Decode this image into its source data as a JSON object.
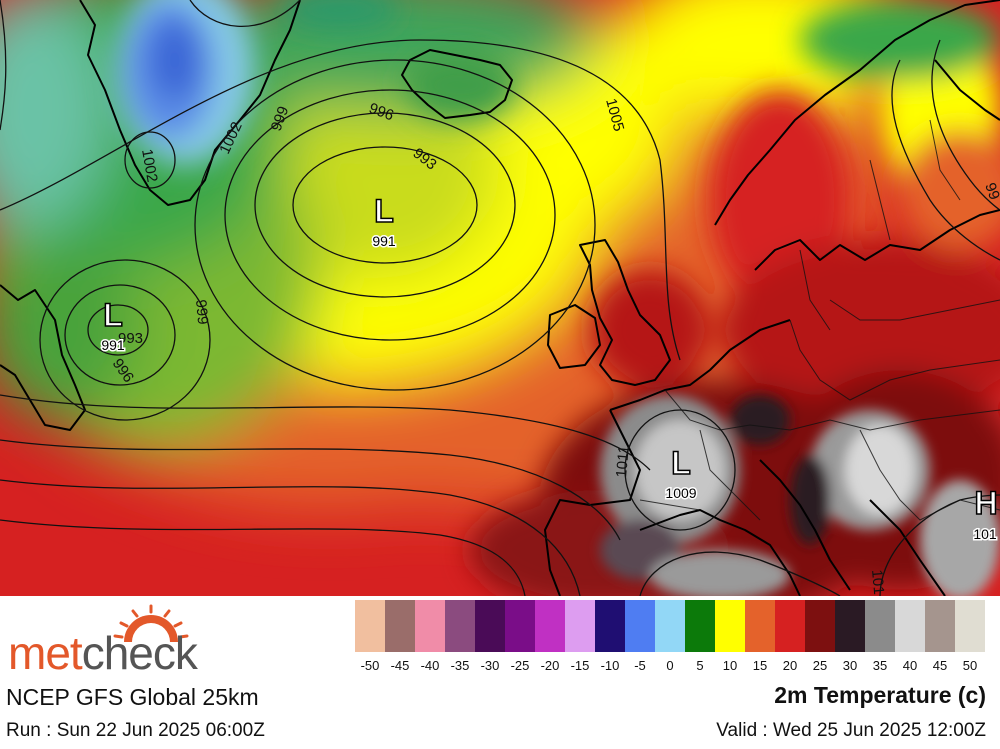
{
  "footer": {
    "logo": {
      "met": "met",
      "check": "check"
    },
    "model_name": "NCEP GFS Global 25km",
    "run": "Run : Sun 22 Jun 2025 06:00Z",
    "parameter": "2m Temperature (c)",
    "valid": "Valid : Wed 25 Jun 2025 12:00Z"
  },
  "legend": {
    "colors": [
      "#f1bf9f",
      "#9a6d6a",
      "#f08ca8",
      "#8b4b7f",
      "#4a0b57",
      "#7a0d88",
      "#c030c3",
      "#dd9df0",
      "#1f0e72",
      "#4f7df2",
      "#92d7f6",
      "#0c7a0a",
      "#ffff00",
      "#e4622b",
      "#d62121",
      "#7d1010",
      "#2a1a24",
      "#8b8b8b",
      "#d8d8d8",
      "#a5958e",
      "#e0ddd2"
    ],
    "ticks": [
      "-50",
      "-45",
      "-40",
      "-35",
      "-30",
      "-25",
      "-20",
      "-15",
      "-10",
      "-5",
      "0",
      "5",
      "10",
      "15",
      "20",
      "25",
      "30",
      "35",
      "40",
      "45",
      "50"
    ]
  },
  "map": {
    "systems": [
      {
        "type": "L",
        "value": "991"
      },
      {
        "type": "L",
        "value": "991"
      },
      {
        "type": "L",
        "value": "1009"
      },
      {
        "type": "H",
        "value": "101"
      }
    ],
    "isobar_labels": [
      "1002",
      "1002",
      "999",
      "996",
      "993",
      "1005",
      "999",
      "993",
      "996",
      "1011",
      "101",
      "99"
    ]
  }
}
